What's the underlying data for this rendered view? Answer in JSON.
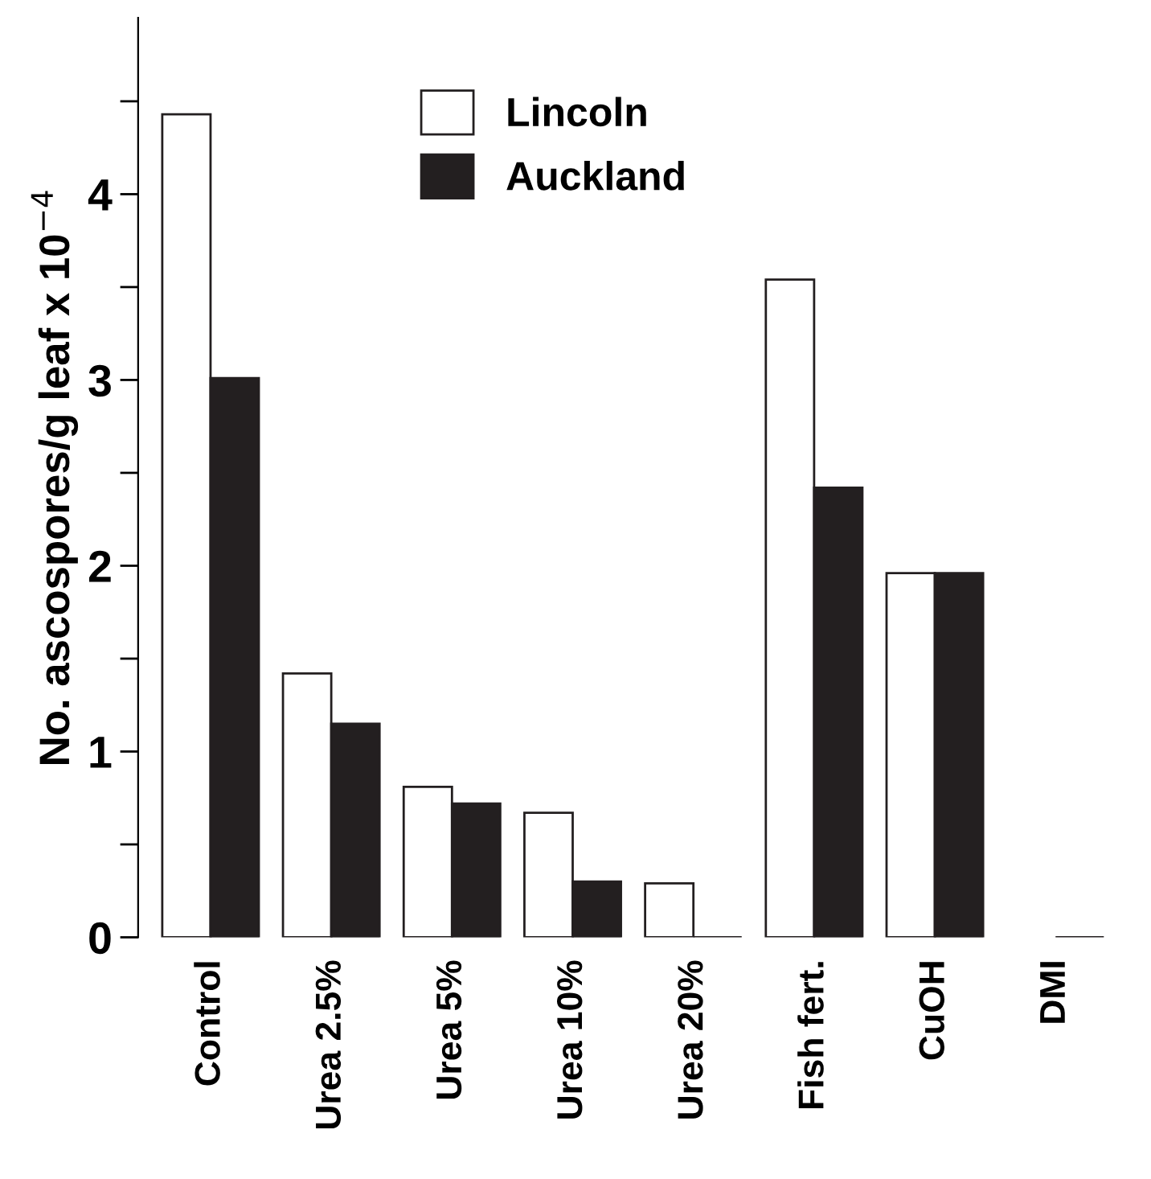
{
  "chart_data": {
    "type": "bar",
    "ylabel": "No. ascospores/g leaf x 10$^{−4}$",
    "categories": [
      "Control",
      "Urea 2.5%",
      "Urea 5%",
      "Urea 10%",
      "Urea 20%",
      "Fish fert.",
      "CuOH",
      "DMI"
    ],
    "series": [
      {
        "name": "Lincoln",
        "color": "#ffffff",
        "values": [
          4.43,
          1.42,
          0.81,
          0.67,
          0.29,
          3.54,
          1.96,
          0
        ]
      },
      {
        "name": "Auckland",
        "color": "#231f20",
        "values": [
          3.01,
          1.15,
          0.72,
          0.3,
          0,
          2.42,
          1.96,
          0
        ]
      }
    ],
    "ylim": [
      0,
      4.95
    ],
    "yticks": [
      0,
      {
        "value": 0.5,
        "label": null
      },
      1,
      {
        "value": 1.5,
        "label": null
      },
      2,
      {
        "value": 2.5,
        "label": null
      },
      3,
      {
        "value": 3.5,
        "label": null
      },
      4,
      {
        "value": 4.5,
        "label": null
      }
    ],
    "legend": "top",
    "grid": false
  }
}
